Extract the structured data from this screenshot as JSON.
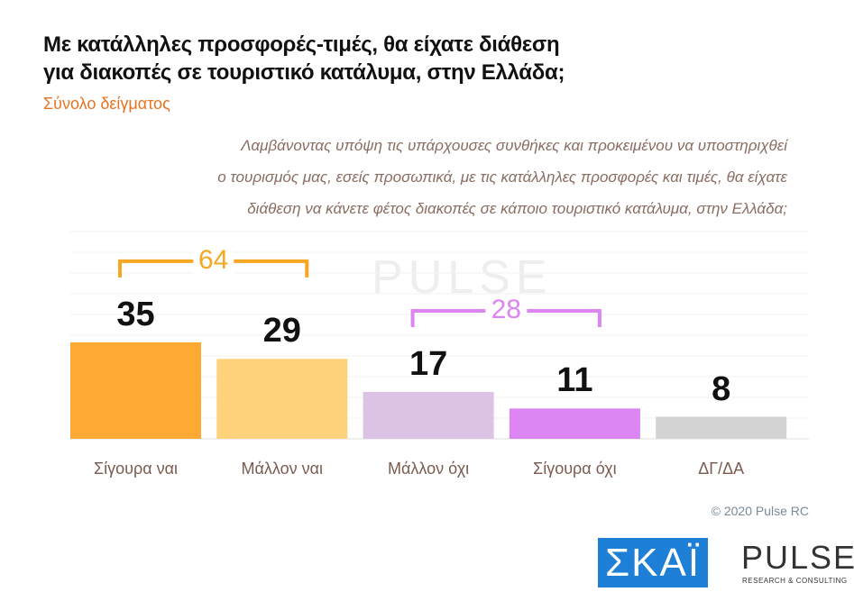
{
  "chart_data": {
    "type": "bar",
    "title": [
      "Με κατάλληλες προσφορές-τιμές, θα είχατε διάθεση",
      "για διακοπές σε τουριστικό κατάλυμα, στην Ελλάδα;"
    ],
    "subtitle": "Σύνολο δείγματος",
    "question": [
      "Λαμβάνοντας υπόψη τις υπάρχουσες συνθήκες και προκειμένου να υποστηριχθεί",
      "ο τουρισμός μας, εσείς προσωπικά, με τις κατάλληλες προσφορές και τιμές, θα είχατε",
      "διάθεση να κάνετε φέτος διακοπές σε κάποιο τουριστικό κατάλυμα, στην Ελλάδα;"
    ],
    "categories": [
      "Σίγουρα ναι",
      "Μάλλον ναι",
      "Μάλλον όχι",
      "Σίγουρα όχι",
      "ΔΓ/ΔΑ"
    ],
    "values": [
      35,
      29,
      17,
      11,
      8
    ],
    "colors": [
      "#fda933",
      "#fdd27a",
      "#dcc3e6",
      "#dd85f2",
      "#d3d3d3"
    ],
    "brackets": [
      {
        "value": 64,
        "from": 0,
        "to": 1,
        "color": "#f5a623"
      },
      {
        "value": 28,
        "from": 2,
        "to": 3,
        "color": "#dd85f2"
      }
    ],
    "copyright": "© 2020 Pulse RC",
    "logos": [
      "ΣΚΑΪ",
      "PULSE",
      "RESEARCH & CONSULTING"
    ]
  }
}
